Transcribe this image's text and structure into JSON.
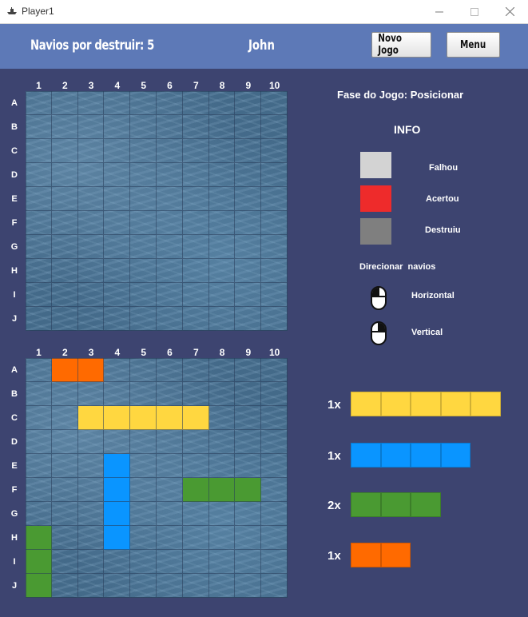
{
  "window": {
    "title": "Player1",
    "icon": "ship-icon"
  },
  "header": {
    "ships_label": "Navios por destruir: 5",
    "player_name": "John",
    "new_game_button": "Novo Jogo",
    "menu_button": "Menu"
  },
  "grid": {
    "columns": [
      "1",
      "2",
      "3",
      "4",
      "5",
      "6",
      "7",
      "8",
      "9",
      "10"
    ],
    "rows": [
      "A",
      "B",
      "C",
      "D",
      "E",
      "F",
      "G",
      "H",
      "I",
      "J"
    ]
  },
  "own_board_ships": [
    {
      "color": "#ff6a00",
      "cells": [
        "A2",
        "A3"
      ]
    },
    {
      "color": "#ffd740",
      "cells": [
        "C3",
        "C4",
        "C5",
        "C6",
        "C7"
      ]
    },
    {
      "color": "#0a95ff",
      "cells": [
        "E4",
        "F4",
        "G4",
        "H4"
      ]
    },
    {
      "color": "#4a9a32",
      "cells": [
        "F7",
        "F8",
        "F9"
      ]
    },
    {
      "color": "#4a9a32",
      "cells": [
        "H1",
        "I1",
        "J1"
      ]
    }
  ],
  "phase_label": "Fase do Jogo: Posicionar",
  "info": {
    "title": "INFO",
    "legend": [
      {
        "label": "Falhou",
        "color": "#d3d3d3"
      },
      {
        "label": "Acertou",
        "color": "#ee2b2b"
      },
      {
        "label": "Destruiu",
        "color": "#7f7f7f"
      }
    ],
    "orient_title_1": "Direcionar",
    "orient_title_2": "navios",
    "horizontal_label": "Horizontal",
    "vertical_label": "Vertical"
  },
  "fleet": [
    {
      "count": "1x",
      "size": 5,
      "color": "#ffd740"
    },
    {
      "count": "1x",
      "size": 4,
      "color": "#0a95ff"
    },
    {
      "count": "2x",
      "size": 3,
      "color": "#4a9a32"
    },
    {
      "count": "1x",
      "size": 2,
      "color": "#ff6a00"
    }
  ]
}
